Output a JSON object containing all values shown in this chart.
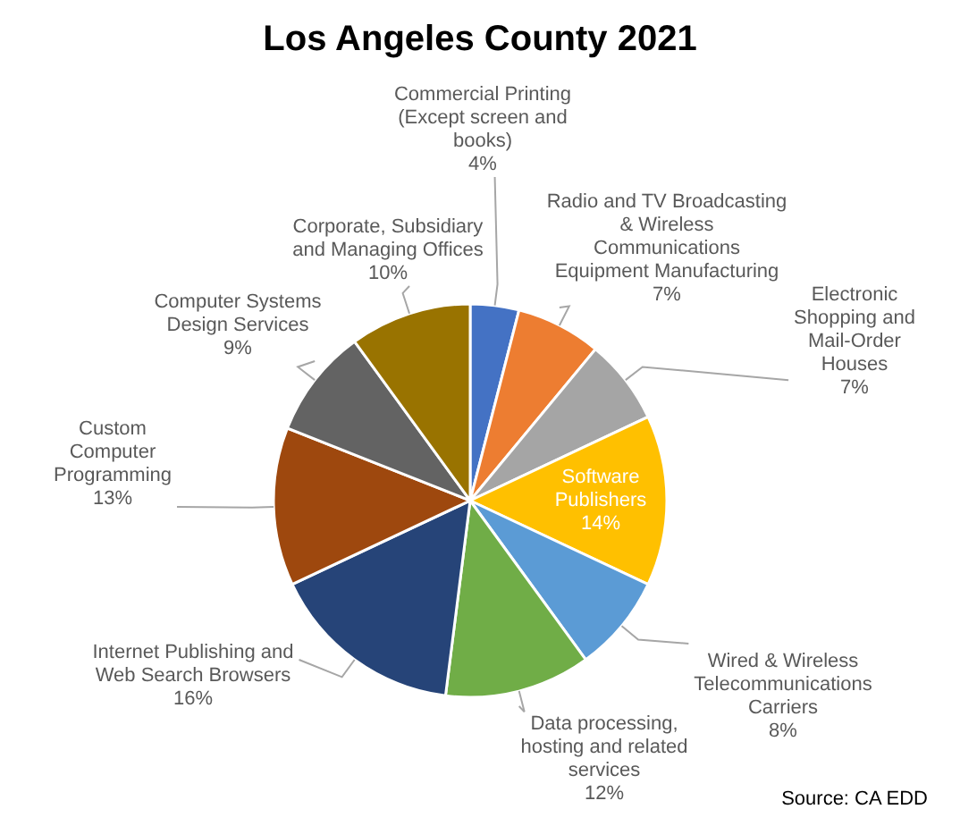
{
  "chart_data": {
    "type": "pie",
    "title": "Los Angeles County 2021",
    "categories": [
      "Commercial Printing (Except screen and books)",
      "Radio and TV Broadcasting & Wireless Communications Equipment Manufacturing",
      "Electronic Shopping and Mail-Order Houses",
      "Software Publishers",
      "Wired & Wireless Telecommunications Carriers",
      "Data processing, hosting and related services",
      "Internet Publishing and Web Search Browsers",
      "Custom Computer Programming",
      "Computer Systems Design Services",
      "Corporate, Subsidiary and Managing Offices"
    ],
    "values": [
      4,
      7,
      7,
      14,
      8,
      12,
      16,
      13,
      9,
      10
    ],
    "value_labels": [
      "4%",
      "7%",
      "7%",
      "14%",
      "8%",
      "12%",
      "16%",
      "13%",
      "9%",
      "10%"
    ],
    "colors": [
      "#4472c4",
      "#ed7d31",
      "#a5a5a5",
      "#ffc000",
      "#5b9bd5",
      "#70ad47",
      "#264478",
      "#9e480e",
      "#636363",
      "#997300"
    ],
    "annotations": [
      "Source: CA EDD"
    ]
  }
}
